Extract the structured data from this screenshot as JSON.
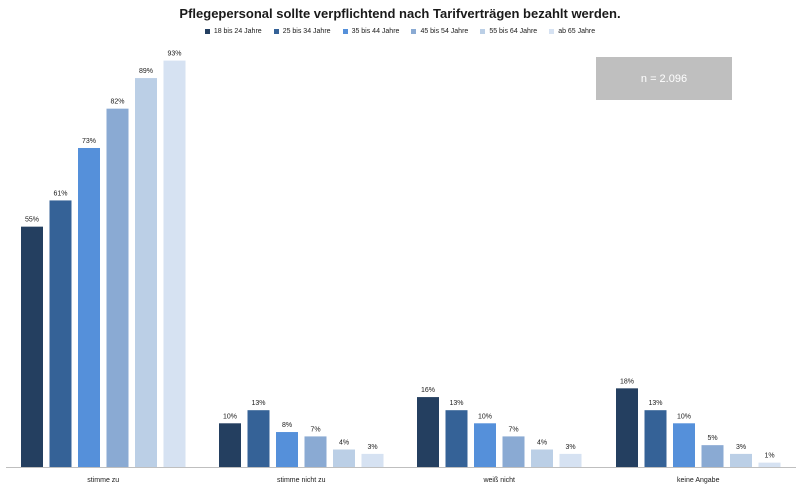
{
  "chart_data": {
    "type": "bar",
    "title": "Pflegepersonal sollte verpflichtend nach Tarifverträgen bezahlt werden.",
    "categories": [
      "stimme zu",
      "stimme nicht zu",
      "weiß nicht",
      "keine Angabe"
    ],
    "series": [
      {
        "name": "18 bis 24 Jahre",
        "color": "#243f60",
        "values": [
          55,
          10,
          16,
          18
        ]
      },
      {
        "name": "25 bis 34 Jahre",
        "color": "#356297",
        "values": [
          61,
          13,
          13,
          13
        ]
      },
      {
        "name": "35 bis 44 Jahre",
        "color": "#5590da",
        "values": [
          73,
          8,
          10,
          10
        ]
      },
      {
        "name": "45 bis 54 Jahre",
        "color": "#8aaad3",
        "values": [
          82,
          7,
          7,
          5
        ]
      },
      {
        "name": "55 bis 64 Jahre",
        "color": "#bbcfe6",
        "values": [
          89,
          4,
          4,
          3
        ]
      },
      {
        "name": "ab 65 Jahre",
        "color": "#d6e2f2",
        "values": [
          93,
          3,
          3,
          1
        ]
      }
    ],
    "value_suffix": "%",
    "ylim": [
      0,
      100
    ],
    "legend_position": "top",
    "grid": false,
    "annotation": "n = 2.096"
  }
}
